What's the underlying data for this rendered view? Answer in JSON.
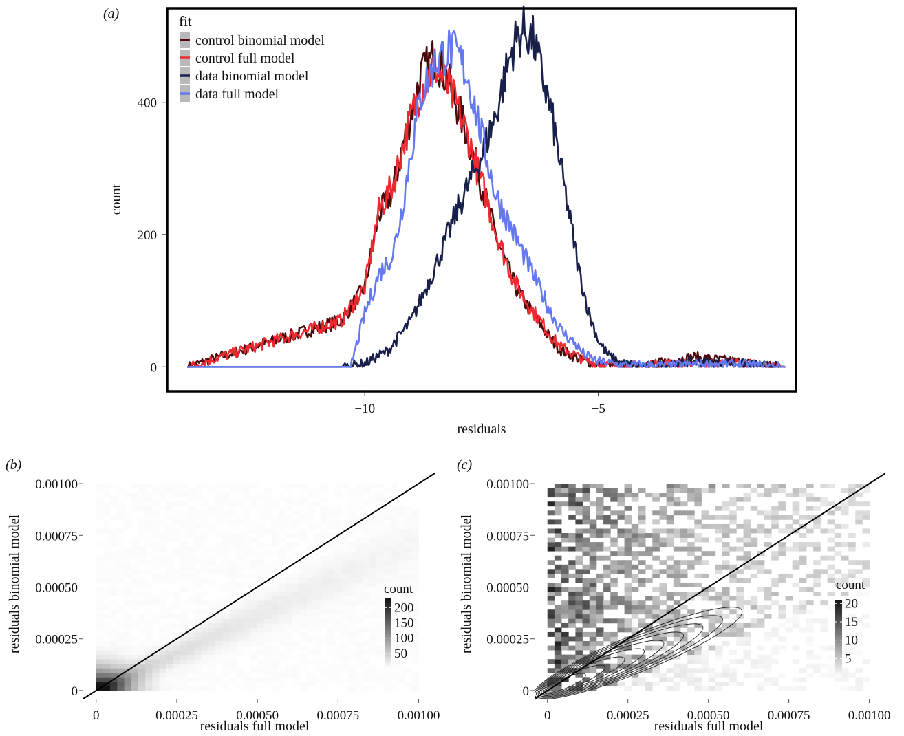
{
  "chart_data": [
    {
      "panel": "(a)",
      "type": "line",
      "xlabel": "residuals",
      "ylabel": "count",
      "xlim": [
        -14.2,
        -0.8
      ],
      "ylim": [
        -35,
        540
      ],
      "xticks": [
        -10,
        -5
      ],
      "yticks": [
        0,
        200,
        400
      ],
      "x_tick_labels": [
        "−10",
        "−5"
      ],
      "y_tick_labels": [
        "0",
        "200",
        "400"
      ],
      "legend": {
        "title": "fit",
        "position": "top-left"
      },
      "grid": false,
      "series": [
        {
          "name": "control binomial model",
          "color": "#4a0a0a",
          "x": [
            -13.8,
            -10.5,
            -10.0,
            -9.7,
            -9.4,
            -9.2,
            -9.0,
            -8.8,
            -8.5,
            -8.2,
            -8.0,
            -7.8,
            -7.6,
            -7.4,
            -7.2,
            -7.0,
            -6.8,
            -6.6,
            -6.4,
            -6.2,
            -6.0,
            -5.8,
            -5.5,
            -5.3,
            -5.0,
            -4.5,
            -4.0,
            -3.5,
            -3.0,
            -2.0,
            -1.5,
            -1.0
          ],
          "y": [
            0,
            70,
            120,
            230,
            265,
            330,
            385,
            440,
            470,
            430,
            390,
            350,
            300,
            250,
            200,
            160,
            125,
            100,
            80,
            60,
            40,
            25,
            15,
            8,
            3,
            1,
            3,
            8,
            15,
            8,
            2,
            0
          ]
        },
        {
          "name": "control full model",
          "color": "#ee2a30",
          "x": [
            -13.8,
            -10.5,
            -10.0,
            -9.7,
            -9.4,
            -9.2,
            -9.0,
            -8.8,
            -8.5,
            -8.2,
            -8.0,
            -7.8,
            -7.6,
            -7.4,
            -7.2,
            -7.0,
            -6.8,
            -6.6,
            -6.4,
            -6.2,
            -6.0,
            -5.8,
            -5.5,
            -5.3,
            -5.0,
            -4.5,
            -4.0,
            -3.5,
            -3.0,
            -2.0,
            -1.5,
            -1.0
          ],
          "y": [
            0,
            70,
            120,
            235,
            275,
            330,
            380,
            420,
            455,
            420,
            390,
            350,
            300,
            255,
            205,
            165,
            130,
            105,
            85,
            65,
            45,
            30,
            18,
            10,
            4,
            2,
            3,
            5,
            5,
            6,
            3,
            0
          ]
        },
        {
          "name": "data binomial model",
          "color": "#18204a",
          "x": [
            -13.8,
            -10.5,
            -10.0,
            -9.5,
            -9.0,
            -8.5,
            -8.0,
            -7.5,
            -7.2,
            -7.0,
            -6.8,
            -6.6,
            -6.4,
            -6.2,
            -6.0,
            -5.8,
            -5.6,
            -5.4,
            -5.2,
            -5.0,
            -4.8,
            -4.5,
            -4.0,
            -3.5,
            -3.0,
            -2.0,
            -1.5,
            -1.0
          ],
          "y": [
            0,
            0,
            5,
            25,
            70,
            150,
            240,
            320,
            380,
            440,
            490,
            510,
            495,
            440,
            380,
            300,
            220,
            140,
            80,
            40,
            18,
            5,
            1,
            3,
            8,
            5,
            2,
            0
          ]
        },
        {
          "name": "data full model",
          "color": "#6478f0",
          "x": [
            -13.8,
            -10.3,
            -10.0,
            -9.7,
            -9.4,
            -9.2,
            -9.0,
            -8.8,
            -8.5,
            -8.2,
            -8.0,
            -7.8,
            -7.6,
            -7.4,
            -7.2,
            -7.0,
            -6.8,
            -6.6,
            -6.4,
            -6.2,
            -6.0,
            -5.8,
            -5.5,
            -5.3,
            -5.0,
            -4.5,
            -4.0,
            -3.5,
            -3.0,
            -2.0,
            -1.5,
            -1.0
          ],
          "y": [
            0,
            0,
            80,
            140,
            170,
            240,
            330,
            410,
            460,
            480,
            470,
            440,
            380,
            320,
            260,
            230,
            200,
            170,
            140,
            110,
            80,
            55,
            35,
            18,
            8,
            3,
            2,
            2,
            4,
            4,
            2,
            0
          ]
        }
      ]
    },
    {
      "panel": "(b)",
      "type": "heatmap",
      "xlabel": "residuals full model",
      "ylabel": "residuals binomial model",
      "xlim": [
        -4e-05,
        0.00105
      ],
      "ylim": [
        -4e-05,
        0.00105
      ],
      "ticks": [
        0,
        0.00025,
        0.0005,
        0.00075,
        0.001
      ],
      "tick_labels": [
        "0",
        "0.00025",
        "0.00050",
        "0.00075",
        "0.00100"
      ],
      "reference_line": "y = x",
      "colorbar": {
        "title": "count",
        "ticks": [
          50,
          100,
          150,
          200
        ],
        "tick_labels": [
          "50",
          "100",
          "150",
          "200"
        ],
        "range": [
          0,
          230
        ]
      }
    },
    {
      "panel": "(c)",
      "type": "heatmap",
      "xlabel": "residuals full model",
      "ylabel": "residuals binomial model",
      "xlim": [
        -4e-05,
        0.00105
      ],
      "ylim": [
        -4e-05,
        0.00105
      ],
      "ticks": [
        0,
        0.00025,
        0.0005,
        0.00075,
        0.001
      ],
      "tick_labels": [
        "0",
        "0.00025",
        "0.00050",
        "0.00075",
        "0.00100"
      ],
      "reference_line": "y = x",
      "density_contours": true,
      "colorbar": {
        "title": "count",
        "ticks": [
          5,
          10,
          15,
          20
        ],
        "tick_labels": [
          "5",
          "10",
          "15",
          "20"
        ],
        "range": [
          0,
          21
        ]
      }
    }
  ]
}
